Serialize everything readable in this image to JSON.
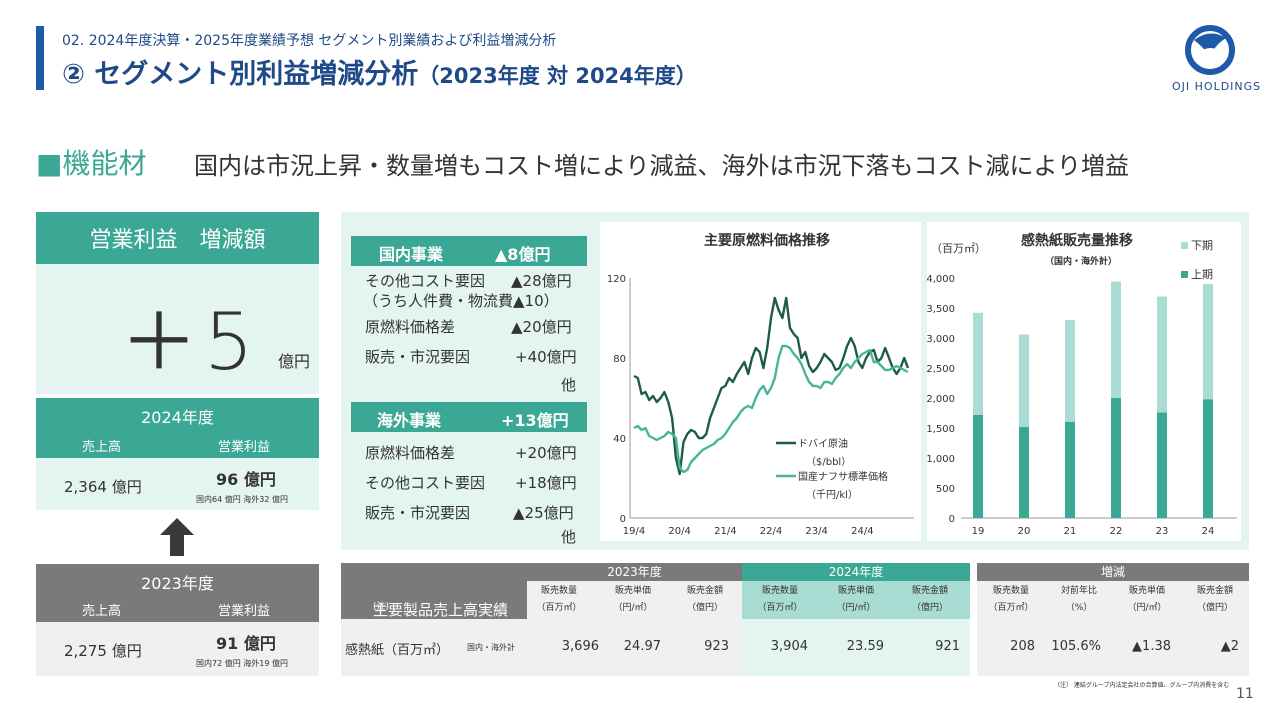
{
  "header": {
    "subtitle": "02. 2024年度決算・2025年度業績予想 セグメント別業績および利益増減分析",
    "title_main": "② セグメント別利益増減分析",
    "title_paren": "（2023年度 対 2024年度）",
    "logo_text": "OJI HOLDINGS",
    "brand_color": "#1f5aa8"
  },
  "section": {
    "name": "■機能材",
    "description": "国内は市況上昇・数量増もコスト増により減益、海外は市況下落もコスト減により増益",
    "accent_color": "#3aa894"
  },
  "kpi": {
    "label": "営業利益　増減額",
    "value": "＋5",
    "unit": "億円"
  },
  "fy2024": {
    "label": "2024年度",
    "col_sales": "売上高",
    "col_op": "営業利益",
    "sales": "2,364 億円",
    "op": "96 億円",
    "note": "国内64 億円 海外32 億円"
  },
  "fy2023": {
    "label": "2023年度",
    "col_sales": "売上高",
    "col_op": "営業利益",
    "sales": "2,275 億円",
    "op": "91 億円",
    "note": "国内72 億円 海外19 億円"
  },
  "factors": {
    "domestic": {
      "title": "国内事業",
      "total": "▲8億円",
      "rows": [
        {
          "label": "その他コスト要因",
          "value": "▲28億円"
        },
        {
          "label": "（うち人件費・物流費▲10）",
          "value": ""
        },
        {
          "label": "原燃料価格差",
          "value": "▲20億円"
        },
        {
          "label": "販売・市況要因",
          "value": "+40億円"
        }
      ],
      "other": "他"
    },
    "overseas": {
      "title": "海外事業",
      "total": "+13億円",
      "rows": [
        {
          "label": "原燃料価格差",
          "value": "+20億円"
        },
        {
          "label": "その他コスト要因",
          "value": "+18億円"
        },
        {
          "label": "販売・市況要因",
          "value": "▲25億円"
        }
      ],
      "other": "他"
    }
  },
  "chart_data": [
    {
      "type": "line",
      "title": "主要原燃料価格推移",
      "x_tick_labels": [
        "19/4",
        "20/4",
        "21/4",
        "22/4",
        "23/4",
        "24/4"
      ],
      "ylim": [
        0,
        120
      ],
      "y_ticks": [
        0,
        40,
        80,
        120
      ],
      "grid": false,
      "legend_position": "right",
      "series": [
        {
          "name": "ドバイ原油",
          "unit": "（$/bbl）",
          "color": "#1f5c45",
          "values": [
            71,
            70,
            62,
            63,
            59,
            61,
            58,
            60,
            63,
            58,
            50,
            30,
            22,
            38,
            42,
            44,
            43,
            40,
            40,
            42,
            50,
            55,
            60,
            65,
            66,
            70,
            68,
            72,
            75,
            78,
            72,
            80,
            85,
            83,
            75,
            85,
            100,
            110,
            104,
            100,
            110,
            95,
            92,
            90,
            80,
            83,
            76,
            73,
            75,
            78,
            82,
            80,
            78,
            74,
            75,
            80,
            86,
            90,
            86,
            78,
            75,
            80,
            83,
            84,
            78,
            80,
            85,
            80,
            75,
            72,
            75,
            80,
            75
          ]
        },
        {
          "name": "国産ナフサ標準価格",
          "unit": "（千円/kl）",
          "color": "#47b59c",
          "values": [
            45,
            46,
            44,
            45,
            41,
            40,
            39,
            40,
            41,
            43,
            42,
            40,
            25,
            23,
            24,
            28,
            30,
            32,
            34,
            35,
            36,
            37,
            39,
            40,
            42,
            45,
            48,
            50,
            53,
            55,
            56,
            55,
            60,
            64,
            66,
            62,
            65,
            70,
            80,
            86,
            86,
            85,
            82,
            80,
            77,
            72,
            68,
            66,
            66,
            65,
            68,
            68,
            67,
            70,
            72,
            75,
            77,
            75,
            78,
            80,
            82,
            83,
            84,
            78,
            78,
            76,
            74,
            74,
            75,
            76,
            75,
            74,
            73
          ]
        }
      ]
    },
    {
      "type": "bar",
      "title": "感熱紙販売量推移",
      "subtitle": "（国内・海外計）",
      "ylabel": "（百万㎡）",
      "categories": [
        "19",
        "20",
        "21",
        "22",
        "23",
        "24"
      ],
      "ylim": [
        0,
        4000
      ],
      "y_tick_labels": [
        "0",
        "500",
        "1,000",
        "1,500",
        "2,000",
        "2,500",
        "3,000",
        "3,500",
        "4,000"
      ],
      "stacked": true,
      "legend_position": "right",
      "series": [
        {
          "name": "上期",
          "color": "#3aa894",
          "values": [
            1720,
            1520,
            1600,
            2000,
            1760,
            1980
          ]
        },
        {
          "name": "下期",
          "color": "#a9ddd3",
          "values": [
            1700,
            1540,
            1700,
            1940,
            1930,
            1920
          ]
        }
      ]
    }
  ],
  "table": {
    "title": "主要製品売上高実績",
    "title_note": "(注)",
    "groups": [
      {
        "label": "2023年度",
        "head_color": "#7a7a7a",
        "body_color": "#f0f0f0",
        "cols": [
          [
            "販売数量",
            "（百万㎡）"
          ],
          [
            "販売単価",
            "（円/㎡）"
          ],
          [
            "販売金額",
            "（億円）"
          ]
        ],
        "values": [
          "3,696",
          "24.97",
          "923"
        ]
      },
      {
        "label": "2024年度",
        "head_color": "#3aa894",
        "body_color": "#e4f4f1",
        "cols": [
          [
            "販売数量",
            "（百万㎡）"
          ],
          [
            "販売単価",
            "（円/㎡）"
          ],
          [
            "販売金額",
            "（億円）"
          ]
        ],
        "values": [
          "3,904",
          "23.59",
          "921"
        ]
      },
      {
        "label": "増減",
        "head_color": "#7a7a7a",
        "body_color": "#f0f0f0",
        "cols": [
          [
            "販売数量",
            "（百万㎡）"
          ],
          [
            "対前年比",
            "（%）"
          ],
          [
            "販売単価",
            "（円/㎡）"
          ],
          [
            "販売金額",
            "（億円）"
          ]
        ],
        "values": [
          "208",
          "105.6%",
          "▲1.38",
          "▲2"
        ]
      }
    ],
    "row_label": "感熱紙（百万㎡）",
    "row_scope": "国内・海外計",
    "footnote": "（注） 連結グループ内法定会社の合算値、グループ内消費を含む",
    "page": "11"
  }
}
